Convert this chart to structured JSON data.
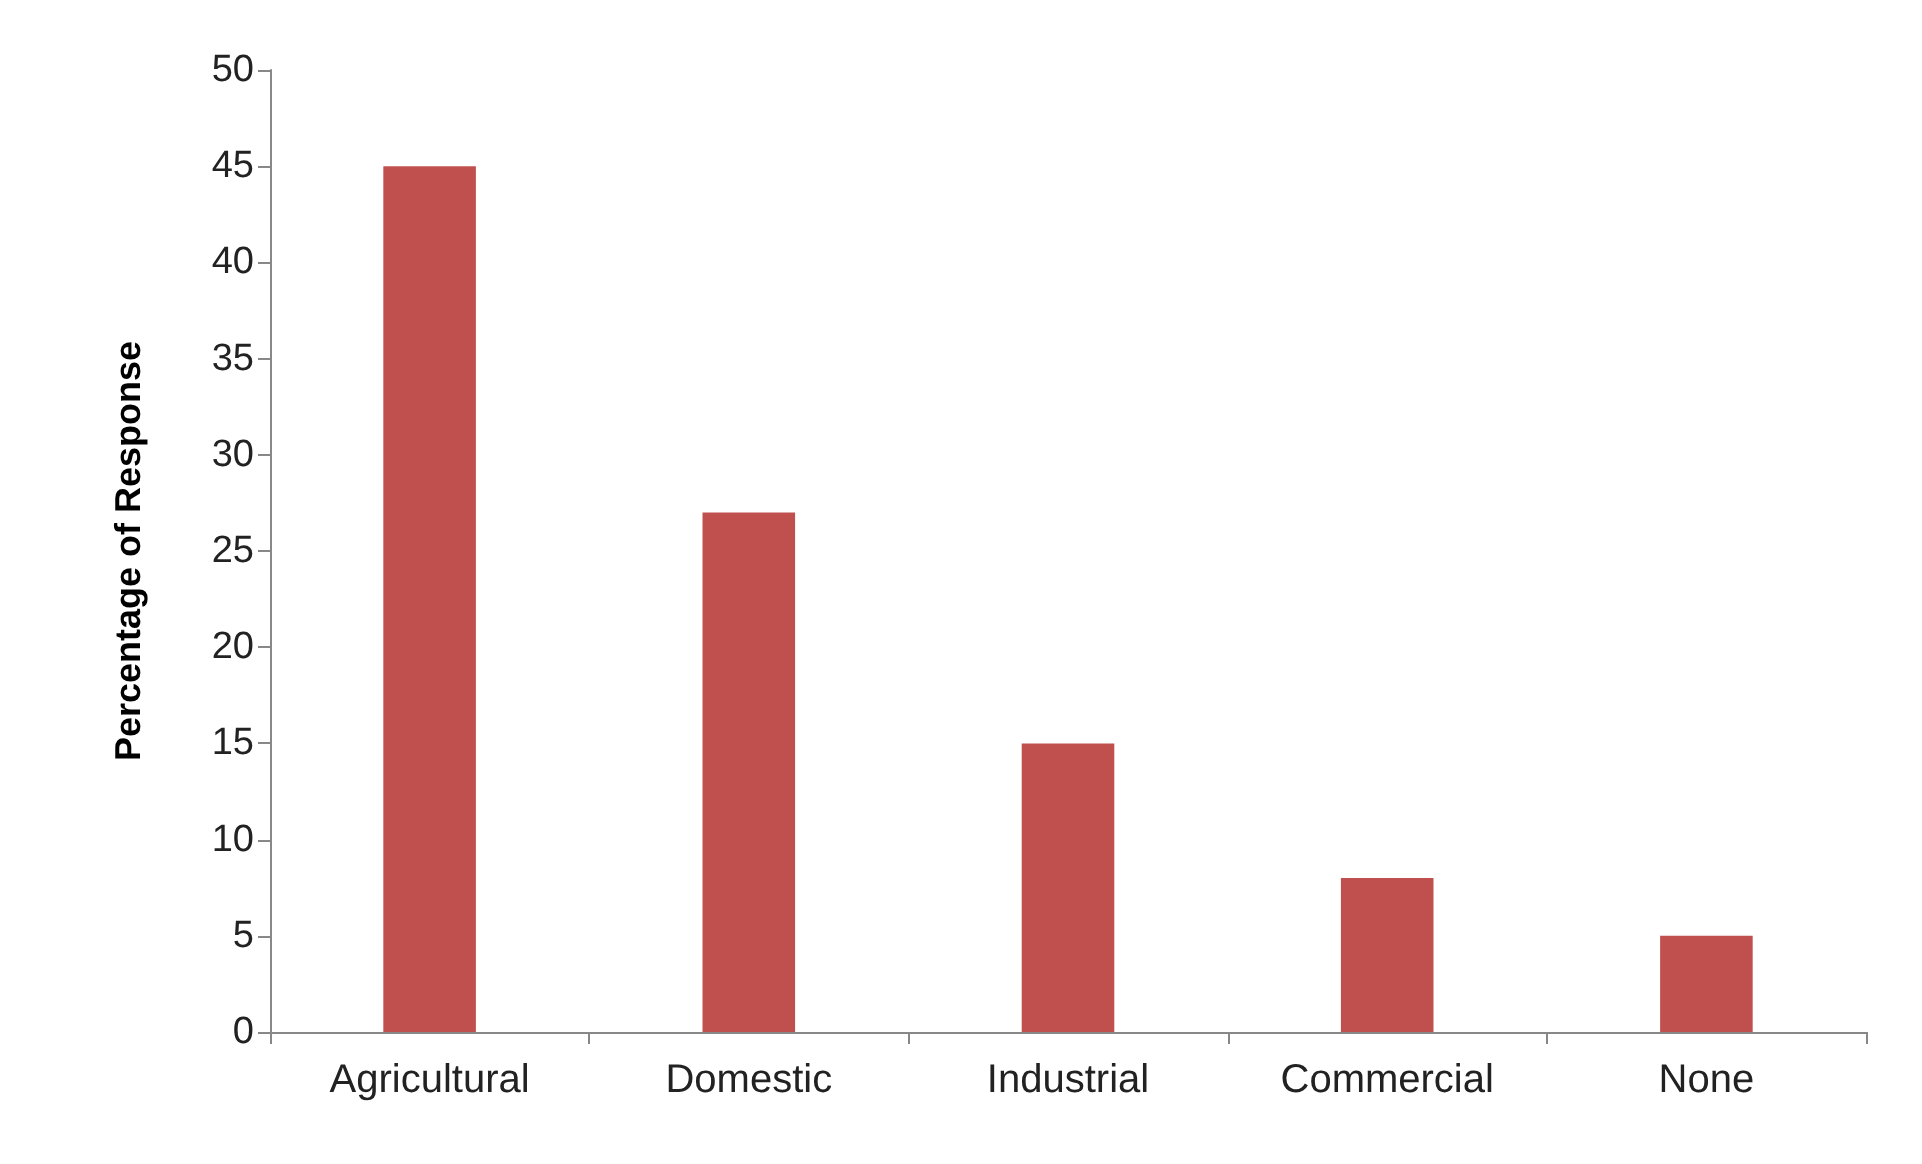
{
  "chart_data": {
    "type": "bar",
    "ylabel": "Percentage of Response",
    "categories": [
      "Agricultural",
      "Domestic",
      "Industrial",
      "Commercial",
      "None"
    ],
    "values": [
      45,
      27,
      15,
      8,
      5
    ],
    "color": "#c0504d",
    "ylim": [
      0,
      50
    ],
    "yticks": [
      0,
      5,
      10,
      15,
      20,
      25,
      30,
      35,
      40,
      45,
      50
    ],
    "grid": false
  }
}
